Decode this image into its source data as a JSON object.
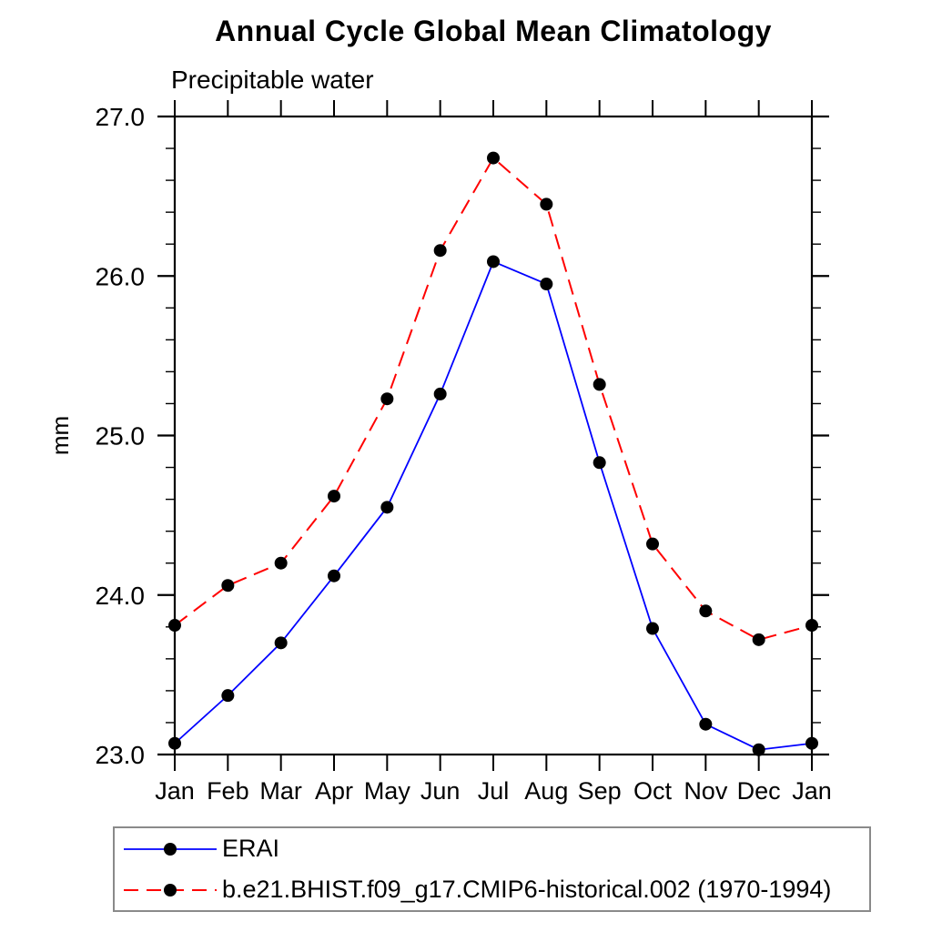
{
  "title": "Annual Cycle Global Mean Climatology",
  "chart_data": {
    "type": "line",
    "title": "Annual Cycle Global Mean Climatology",
    "subtitle": "Precipitable water",
    "ylabel": "mm",
    "xlabel": "",
    "categories": [
      "Jan",
      "Feb",
      "Mar",
      "Apr",
      "May",
      "Jun",
      "Jul",
      "Aug",
      "Sep",
      "Oct",
      "Nov",
      "Dec",
      "Jan"
    ],
    "ylim": [
      23.0,
      27.0
    ],
    "ytick_major_interval": 1.0,
    "ytick_minor_interval": 0.2,
    "ytick_labels": [
      "23.0",
      "24.0",
      "25.0",
      "26.0",
      "27.0"
    ],
    "grid": false,
    "legend_position": "bottom-left-box",
    "series": [
      {
        "name": "ERAI",
        "color": "#0000ff",
        "line_style": "solid",
        "marker": "filled-circle",
        "marker_color": "#000000",
        "values": [
          23.07,
          23.37,
          23.7,
          24.12,
          24.55,
          25.26,
          26.09,
          25.95,
          24.83,
          23.79,
          23.19,
          23.03,
          23.07
        ]
      },
      {
        "name": "b.e21.BHIST.f09_g17.CMIP6-historical.002 (1970-1994)",
        "color": "#ff0000",
        "line_style": "dashed",
        "marker": "filled-circle",
        "marker_color": "#000000",
        "values": [
          23.81,
          24.06,
          24.2,
          24.62,
          25.23,
          26.16,
          26.74,
          26.45,
          25.32,
          24.32,
          23.9,
          23.72,
          23.81
        ]
      }
    ]
  },
  "colors": {
    "frame": "#000000",
    "text": "#000000",
    "legend_border": "#8a8a8a",
    "erai_line": "#0000ff",
    "model_line": "#ff0000",
    "marker": "#000000"
  }
}
